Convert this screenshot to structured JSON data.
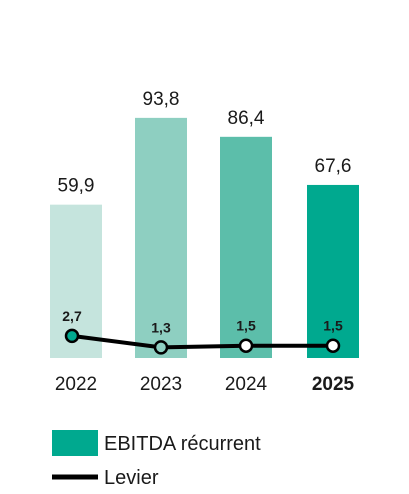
{
  "chart_data": {
    "type": "bar",
    "categories": [
      "2022",
      "2023",
      "2024",
      "2025"
    ],
    "highlighted_category": "2025",
    "series": [
      {
        "name": "EBITDA récurrent",
        "type": "bar",
        "values": [
          59.9,
          93.8,
          86.4,
          67.6
        ],
        "value_labels": [
          "59,9",
          "93,8",
          "86,4",
          "67,6"
        ],
        "colors": [
          "#c5e4dd",
          "#8ecfc1",
          "#5cbeaa",
          "#00a98f"
        ]
      },
      {
        "name": "Levier",
        "type": "line",
        "values": [
          2.7,
          1.3,
          1.5,
          1.5
        ],
        "value_labels": [
          "2,7",
          "1,3",
          "1,5",
          "1,5"
        ],
        "color": "#000000",
        "marker_fill": [
          "#00a98f",
          "#8ecfc1",
          "#ffffff",
          "#ffffff"
        ]
      }
    ],
    "grid": false,
    "legend_position": "bottom-left",
    "legend": [
      {
        "label": "EBITDA récurrent",
        "symbol": "bar",
        "color": "#00a98f"
      },
      {
        "label": "Levier",
        "symbol": "line",
        "color": "#000000"
      }
    ]
  }
}
